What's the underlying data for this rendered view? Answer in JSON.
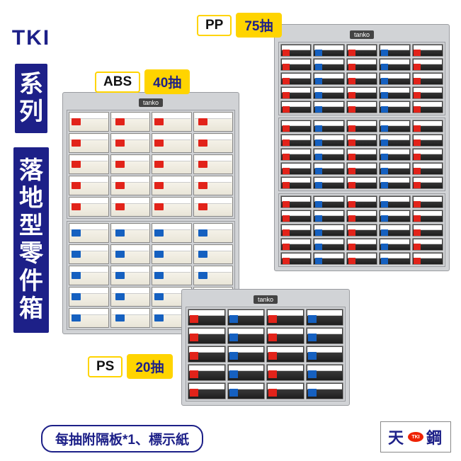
{
  "sidebar": {
    "series_label": "TKI",
    "series_sub": "系\n列",
    "product_label": "落\n地\n型\n零\n件\n箱"
  },
  "colors": {
    "accent": "#1d2088",
    "chip": "#ffd400",
    "red": "#e2231a",
    "blue": "#1560c0",
    "cabinet_body": "#d1d3d6",
    "abs_drawer": "#f3f0e6",
    "dark_drawer": "#2d2d2d"
  },
  "tags": {
    "pp": {
      "name": "PP",
      "value": "75抽"
    },
    "abs": {
      "name": "ABS",
      "value": "40抽"
    },
    "ps": {
      "name": "PS",
      "value": "20抽"
    }
  },
  "note": "每抽附隔板*1、標示紙",
  "brand_logo": "天 鋼",
  "cab_brand": "tanko",
  "cabinets": {
    "pp": {
      "cols": 5,
      "blocks": 3,
      "rows_per_block": 5,
      "tab_pattern": [
        "red",
        "blue",
        "red",
        "blue",
        "red"
      ]
    },
    "abs": {
      "cols": 4,
      "blocks": 2,
      "rows_per_block": 5,
      "block_colors": [
        "red",
        "blue"
      ]
    },
    "ps": {
      "cols": 4,
      "blocks": 1,
      "rows_per_block": 5,
      "tab_pattern": [
        "red",
        "blue",
        "red",
        "blue"
      ]
    }
  }
}
